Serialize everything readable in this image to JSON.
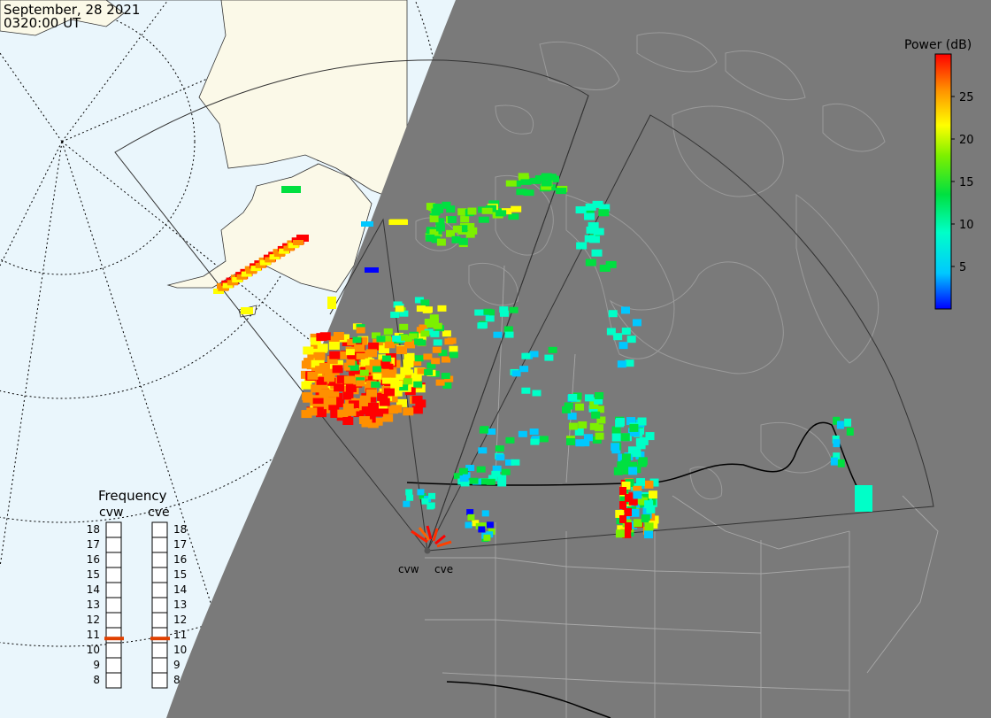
{
  "header": {
    "date": "September, 28 2021",
    "time": "0320:00 UT"
  },
  "colorbar": {
    "title": "Power (dB)",
    "ticks": [
      25,
      20,
      15,
      10,
      5
    ],
    "range": [
      0,
      30
    ],
    "colors": [
      "#0000ff",
      "#00c8ff",
      "#00ffc8",
      "#00e040",
      "#7cf000",
      "#ffff00",
      "#ff9000",
      "#ff0000"
    ]
  },
  "colors": {
    "night": "#7a7a7a",
    "ocean_day": "#eaf6fc",
    "land_day": "#fbf9e8",
    "coastline_night": "#9a9a9a",
    "border": "#000000"
  },
  "radars": {
    "labels": [
      "cvw",
      "cve"
    ],
    "active_frequency": 11
  },
  "frequency_panel": {
    "title": "Frequency",
    "columns": [
      "cvw",
      "cve"
    ],
    "ticks": [
      18,
      17,
      16,
      15,
      14,
      13,
      12,
      11,
      10,
      9,
      8
    ],
    "cvw_value": 11,
    "cve_value": 11,
    "marker_color": "#e04000"
  }
}
